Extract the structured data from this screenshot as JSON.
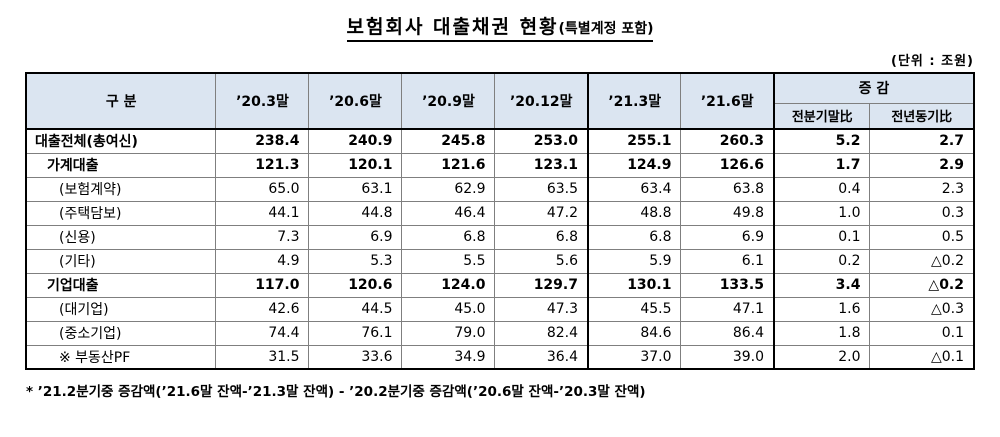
{
  "title": "보험회사 대출채권 현황",
  "title_suffix": "(특별계정 포함)",
  "unit_label": "(단위 : 조원)",
  "colors": {
    "header_bg": "#dbe5f1"
  },
  "table": {
    "corner_header": "구  분",
    "period_headers": [
      "’20.3말",
      "’20.6말",
      "’20.9말",
      "’20.12말",
      "’21.3말",
      "’21.6말"
    ],
    "change_group_header": "증  감",
    "change_sub_headers": [
      "전분기말比",
      "전년동기比"
    ],
    "rows": [
      {
        "label": "대출전체(총여신)",
        "indent": 0,
        "bold": true,
        "values": [
          "238.4",
          "240.9",
          "245.8",
          "253.0",
          "255.1",
          "260.3",
          "5.2",
          "2.7"
        ]
      },
      {
        "label": "가계대출",
        "indent": 1,
        "bold": true,
        "values": [
          "121.3",
          "120.1",
          "121.6",
          "123.1",
          "124.9",
          "126.6",
          "1.7",
          "2.9"
        ]
      },
      {
        "label": "(보험계약)",
        "indent": 2,
        "bold": false,
        "values": [
          "65.0",
          "63.1",
          "62.9",
          "63.5",
          "63.4",
          "63.8",
          "0.4",
          "2.3"
        ]
      },
      {
        "label": "(주택담보)",
        "indent": 2,
        "bold": false,
        "values": [
          "44.1",
          "44.8",
          "46.4",
          "47.2",
          "48.8",
          "49.8",
          "1.0",
          "0.3"
        ]
      },
      {
        "label": "(신용)",
        "indent": 2,
        "bold": false,
        "values": [
          "7.3",
          "6.9",
          "6.8",
          "6.8",
          "6.8",
          "6.9",
          "0.1",
          "0.5"
        ]
      },
      {
        "label": "(기타)",
        "indent": 2,
        "bold": false,
        "values": [
          "4.9",
          "5.3",
          "5.5",
          "5.6",
          "5.9",
          "6.1",
          "0.2",
          "△0.2"
        ]
      },
      {
        "label": "기업대출",
        "indent": 1,
        "bold": true,
        "values": [
          "117.0",
          "120.6",
          "124.0",
          "129.7",
          "130.1",
          "133.5",
          "3.4",
          "△0.2"
        ]
      },
      {
        "label": "(대기업)",
        "indent": 2,
        "bold": false,
        "values": [
          "42.6",
          "44.5",
          "45.0",
          "47.3",
          "45.5",
          "47.1",
          "1.6",
          "△0.3"
        ]
      },
      {
        "label": "(중소기업)",
        "indent": 2,
        "bold": false,
        "values": [
          "74.4",
          "76.1",
          "79.0",
          "82.4",
          "84.6",
          "86.4",
          "1.8",
          "0.1"
        ]
      },
      {
        "label": "※ 부동산PF",
        "indent": 2,
        "bold": false,
        "values": [
          "31.5",
          "33.6",
          "34.9",
          "36.4",
          "37.0",
          "39.0",
          "2.0",
          "△0.1"
        ]
      }
    ]
  },
  "footnote": "* ’21.2분기중 증감액(’21.6말 잔액-’21.3말 잔액) - ’20.2분기중 증감액(’20.6말 잔액-’20.3말 잔액)"
}
